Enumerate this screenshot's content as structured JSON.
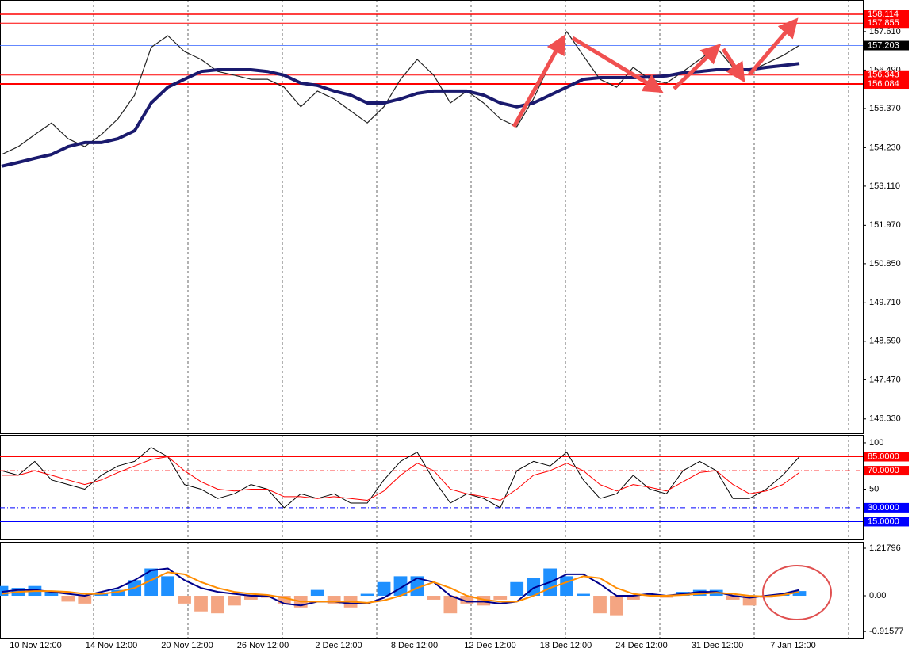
{
  "chart_data": [
    {
      "type": "line",
      "x_labels": [
        "10 Nov 12:00",
        "14 Nov 12:00",
        "20 Nov 12:00",
        "26 Nov 12:00",
        "2 Dec 12:00",
        "8 Dec 12:00",
        "12 Dec 12:00",
        "18 Dec 12:00",
        "24 Dec 12:00",
        "31 Dec 12:00",
        "7 Jan 12:00"
      ],
      "ylim": [
        145.91,
        158.53
      ],
      "yticks": [
        {
          "value": 146.33,
          "label": "146.330"
        },
        {
          "value": 147.47,
          "label": "147.470"
        },
        {
          "value": 148.59,
          "label": "148.590"
        },
        {
          "value": 149.71,
          "label": "149.710"
        },
        {
          "value": 150.85,
          "label": "150.850"
        },
        {
          "value": 151.97,
          "label": "151.970"
        },
        {
          "value": 153.11,
          "label": "153.110"
        },
        {
          "value": 154.23,
          "label": "154.230"
        },
        {
          "value": 155.37,
          "label": "155.370"
        },
        {
          "value": 156.49,
          "label": "156.490"
        },
        {
          "value": 157.61,
          "label": "157.610"
        }
      ],
      "levels": [
        {
          "value": 158.114,
          "color": "#ff0000",
          "box": "#ff0000",
          "width": 1.5
        },
        {
          "value": 157.855,
          "color": "#ff0000",
          "box": "#ff0000",
          "width": 1
        },
        {
          "value": 157.203,
          "color": "#3060ff",
          "box": "#000000",
          "width": 0.8
        },
        {
          "value": 156.343,
          "color": "#ff0000",
          "box": "#ff0000",
          "width": 1
        },
        {
          "value": 156.084,
          "color": "#ff0000",
          "box": "#ff0000",
          "width": 2
        }
      ],
      "series": [
        {
          "color": "#222222",
          "width": 1.2,
          "values": [
            154.03,
            154.26,
            154.61,
            154.95,
            154.49,
            154.26,
            154.61,
            155.07,
            155.76,
            157.15,
            157.49,
            157.03,
            156.8,
            156.45,
            156.34,
            156.22,
            156.22,
            155.99,
            155.42,
            155.88,
            155.65,
            155.3,
            154.95,
            155.42,
            156.22,
            156.8,
            156.34,
            155.53,
            155.88,
            155.53,
            155.07,
            154.84,
            155.65,
            156.68,
            157.61,
            156.91,
            156.22,
            155.99,
            156.57,
            156.22,
            156.11,
            156.45,
            156.8,
            157.15,
            156.57,
            156.45,
            156.68,
            156.91,
            157.21
          ]
        },
        {
          "color": "#1a1a6e",
          "width": 4,
          "values": [
            153.69,
            153.8,
            153.92,
            154.03,
            154.26,
            154.38,
            154.38,
            154.49,
            154.72,
            155.53,
            155.99,
            156.22,
            156.45,
            156.5,
            156.5,
            156.5,
            156.45,
            156.34,
            156.11,
            156.04,
            155.88,
            155.76,
            155.53,
            155.53,
            155.65,
            155.81,
            155.88,
            155.88,
            155.88,
            155.76,
            155.53,
            155.42,
            155.53,
            155.76,
            155.99,
            156.22,
            156.27,
            156.27,
            156.27,
            156.29,
            156.32,
            156.41,
            156.45,
            156.5,
            156.5,
            156.5,
            156.57,
            156.62,
            156.68
          ]
        }
      ]
    },
    {
      "type": "line",
      "ylim": [
        -3.4,
        108.5
      ],
      "yticks": [
        100,
        50
      ],
      "levels": [
        {
          "value": 85,
          "label": "85.0000",
          "color": "#ff0000",
          "box": "#ff0000",
          "width": 1
        },
        {
          "value": 70,
          "label": "70.0000",
          "color": "#ff0000",
          "box": "#ff0000",
          "width": 1,
          "dash": "6 3 1 3"
        },
        {
          "value": 30,
          "label": "30.0000",
          "color": "#0000ff",
          "box": "#0000ff",
          "width": 1,
          "dash": "6 3 1 3"
        },
        {
          "value": 15,
          "label": "15.0000",
          "color": "#0000ff",
          "box": "#0000ff",
          "width": 1
        }
      ],
      "series": [
        {
          "color": "#000000",
          "width": 1,
          "values": [
            70,
            65,
            80,
            60,
            55,
            50,
            65,
            75,
            80,
            95,
            85,
            55,
            50,
            40,
            45,
            55,
            50,
            30,
            45,
            40,
            45,
            35,
            35,
            60,
            80,
            90,
            60,
            35,
            45,
            40,
            30,
            70,
            80,
            75,
            90,
            60,
            40,
            45,
            65,
            50,
            45,
            70,
            80,
            70,
            40,
            40,
            50,
            65,
            85
          ]
        },
        {
          "color": "#ff0000",
          "width": 1,
          "values": [
            65,
            65,
            70,
            65,
            60,
            55,
            60,
            68,
            75,
            82,
            85,
            70,
            58,
            50,
            48,
            50,
            50,
            42,
            42,
            40,
            42,
            40,
            38,
            48,
            65,
            78,
            70,
            50,
            45,
            42,
            38,
            50,
            65,
            70,
            78,
            70,
            55,
            48,
            55,
            52,
            48,
            58,
            68,
            70,
            55,
            45,
            48,
            55,
            68
          ]
        }
      ]
    },
    {
      "type": "bar",
      "ylim": [
        -1.075,
        1.38
      ],
      "yticks": [
        1.21796,
        {
          "value": 0,
          "label": "0.00"
        },
        -0.91577
      ],
      "up_color": "#1e90ff",
      "down_color": "#f4a582",
      "values": [
        0.25,
        0.2,
        0.25,
        0.1,
        -0.15,
        -0.2,
        0.05,
        0.15,
        0.4,
        0.7,
        0.5,
        -0.2,
        -0.4,
        -0.45,
        -0.25,
        -0.1,
        -0.05,
        -0.2,
        -0.3,
        0.15,
        -0.2,
        -0.3,
        0.05,
        0.35,
        0.5,
        0.5,
        -0.1,
        -0.45,
        -0.2,
        -0.25,
        -0.1,
        0.35,
        0.45,
        0.7,
        0.5,
        0.05,
        -0.45,
        -0.5,
        -0.1,
        0.05,
        -0.05,
        0.1,
        0.15,
        0.15,
        -0.1,
        -0.25,
        -0.05,
        0.05,
        0.12
      ],
      "series": [
        {
          "color": "#00008b",
          "width": 2,
          "values": [
            0.1,
            0.15,
            0.15,
            0.1,
            0.05,
            0.0,
            0.1,
            0.2,
            0.4,
            0.65,
            0.7,
            0.4,
            0.2,
            0.1,
            0.05,
            0.0,
            0.0,
            -0.2,
            -0.25,
            -0.15,
            -0.15,
            -0.2,
            -0.2,
            -0.05,
            0.2,
            0.45,
            0.35,
            0.0,
            -0.15,
            -0.15,
            -0.2,
            -0.15,
            0.2,
            0.35,
            0.55,
            0.55,
            0.3,
            0.0,
            0.0,
            0.05,
            0.0,
            0.05,
            0.1,
            0.1,
            0.0,
            -0.05,
            0.0,
            0.05,
            0.15
          ]
        },
        {
          "color": "#ff8c00",
          "width": 2,
          "values": [
            0.05,
            0.1,
            0.12,
            0.12,
            0.1,
            0.05,
            0.05,
            0.1,
            0.2,
            0.4,
            0.6,
            0.55,
            0.35,
            0.2,
            0.1,
            0.05,
            0.02,
            -0.05,
            -0.15,
            -0.15,
            -0.15,
            -0.15,
            -0.18,
            -0.12,
            0.0,
            0.2,
            0.35,
            0.2,
            0.0,
            -0.1,
            -0.15,
            -0.15,
            0.0,
            0.2,
            0.35,
            0.5,
            0.45,
            0.2,
            0.05,
            0.0,
            0.0,
            0.02,
            0.05,
            0.08,
            0.05,
            0.0,
            -0.02,
            0.02,
            0.1
          ]
        }
      ]
    }
  ]
}
